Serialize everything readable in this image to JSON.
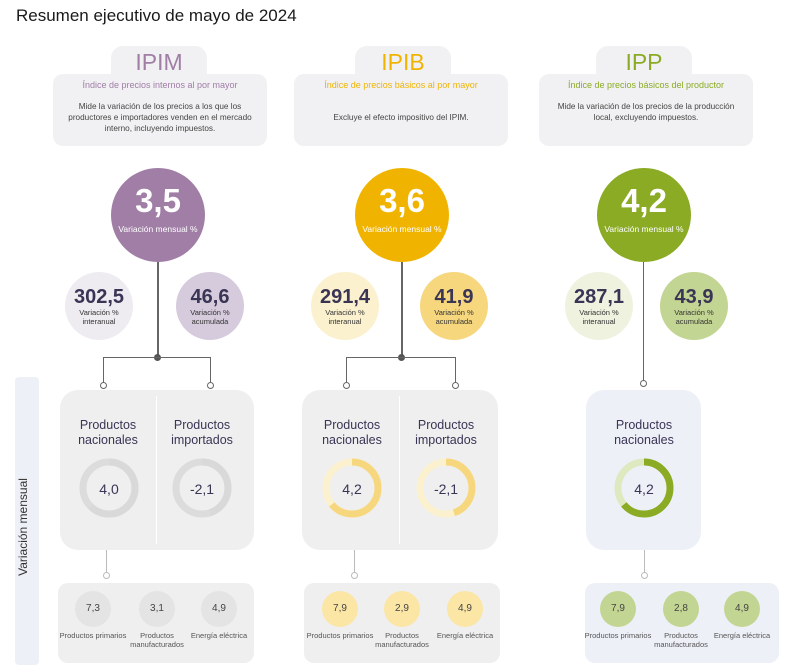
{
  "title": "Resumen ejecutivo de mayo de 2024",
  "side_label": "Variación mensual",
  "colors": {
    "ipim": "#a07ea6",
    "ipim_light": "#d6cbdd",
    "ipim_pale": "#efecf1",
    "ipib": "#f0b400",
    "ipib_light": "#f6d77e",
    "ipib_pale": "#fbf1cf",
    "ipp": "#8bab24",
    "ipp_light": "#c3d592",
    "ipp_pale": "#eef2df"
  },
  "indices": [
    {
      "code": "IPIM",
      "name": "Índice de precios internos al por mayor",
      "description": "Mide la variación de los precios a los que los productores e importadores venden en el mercado interno, incluyendo impuestos.",
      "monthly": "3,5",
      "monthly_label": "Variación mensual %",
      "interanual": "302,5",
      "interanual_label": "Variación % interanual",
      "acumulada": "46,6",
      "acumulada_label": "Variación % acumulada",
      "products": [
        {
          "label": "Productos nacionales",
          "value": "4,0",
          "pct": 0.62
        },
        {
          "label": "Productos importados",
          "value": "-2,1",
          "pct": 0.45
        }
      ],
      "breakdown": [
        {
          "value": "7,3",
          "label": "Productos primarios"
        },
        {
          "value": "3,1",
          "label": "Productos manufacturados"
        },
        {
          "value": "4,9",
          "label": "Energía eléctrica"
        }
      ]
    },
    {
      "code": "IPIB",
      "name": "Índice de precios básicos al por mayor",
      "description": "Excluye el efecto impositivo del IPIM.",
      "monthly": "3,6",
      "monthly_label": "Variación mensual %",
      "interanual": "291,4",
      "interanual_label": "Variación % interanual",
      "acumulada": "41,9",
      "acumulada_label": "Variación % acumulada",
      "products": [
        {
          "label": "Productos nacionales",
          "value": "4,2",
          "pct": 0.64
        },
        {
          "label": "Productos importados",
          "value": "-2,1",
          "pct": 0.45
        }
      ],
      "breakdown": [
        {
          "value": "7,9",
          "label": "Productos primarios"
        },
        {
          "value": "2,9",
          "label": "Productos manufacturados"
        },
        {
          "value": "4,9",
          "label": "Energía eléctrica"
        }
      ]
    },
    {
      "code": "IPP",
      "name": "Índice de precios básicos del productor",
      "description": "Mide la variación de los precios de la producción local, excluyendo impuestos.",
      "monthly": "4,2",
      "monthly_label": "Variación mensual %",
      "interanual": "287,1",
      "interanual_label": "Variación % interanual",
      "acumulada": "43,9",
      "acumulada_label": "Variación % acumulada",
      "products": [
        {
          "label": "Productos nacionales",
          "value": "4,2",
          "pct": 0.64
        }
      ],
      "breakdown": [
        {
          "value": "7,9",
          "label": "Productos primarios"
        },
        {
          "value": "2,8",
          "label": "Productos manufacturados"
        },
        {
          "value": "4,9",
          "label": "Energía eléctrica"
        }
      ]
    }
  ]
}
